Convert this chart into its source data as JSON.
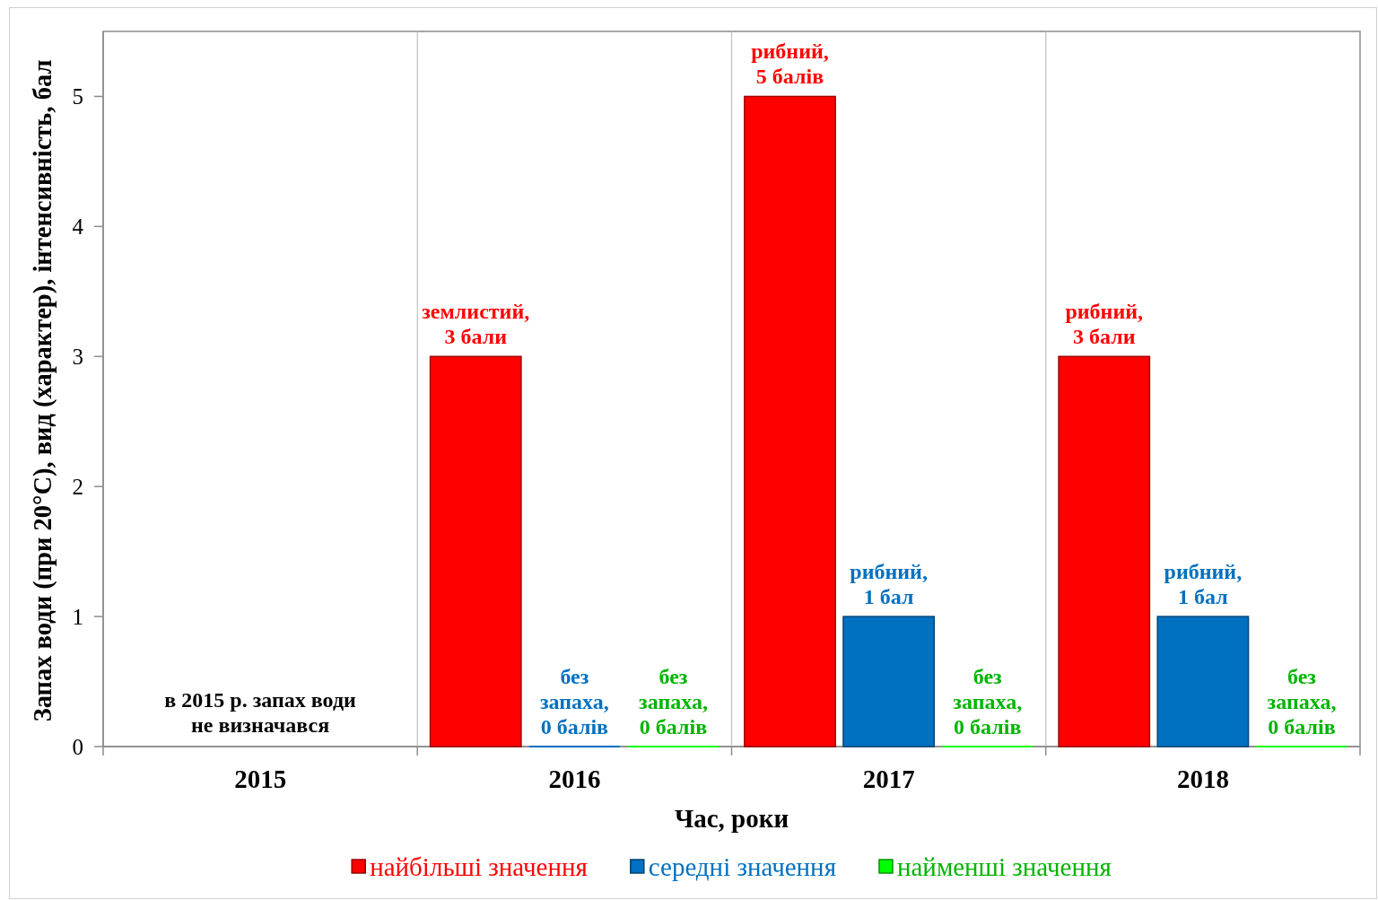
{
  "chart_data": {
    "type": "bar",
    "xlabel": "Час, роки",
    "ylabel": "Запах води (при 20°С), вид (характер), інтенсивність, бал",
    "categories": [
      "2015",
      "2016",
      "2017",
      "2018"
    ],
    "series": [
      {
        "name": "найбільші значення",
        "color": "#ff0000",
        "values": [
          null,
          3,
          5,
          3
        ],
        "value_labels": [
          null,
          "землистий,\n3 бали",
          "рибний,\n5 балів",
          "рибний,\n3 бали"
        ]
      },
      {
        "name": "середні значення",
        "color": "#0070c0",
        "values": [
          null,
          0,
          1,
          1
        ],
        "value_labels": [
          null,
          "без\nзапаха,\n0 балів",
          "рибний,\n1 бал",
          "рибний,\n1 бал"
        ]
      },
      {
        "name": "найменші значення",
        "color": "#00ff00",
        "values": [
          null,
          0,
          0,
          0
        ],
        "value_labels": [
          null,
          "без\nзапаха,\n0 балів",
          "без\nзапаха,\n0 балів",
          "без\nзапаха,\n0 балів"
        ]
      }
    ],
    "ylim": [
      0,
      5.5
    ],
    "yticks": [
      0,
      1,
      2,
      3,
      4,
      5
    ],
    "grid": "x",
    "legend": "bottom",
    "annotations": [
      "в 2015 р. запах води\nне визначався"
    ]
  }
}
